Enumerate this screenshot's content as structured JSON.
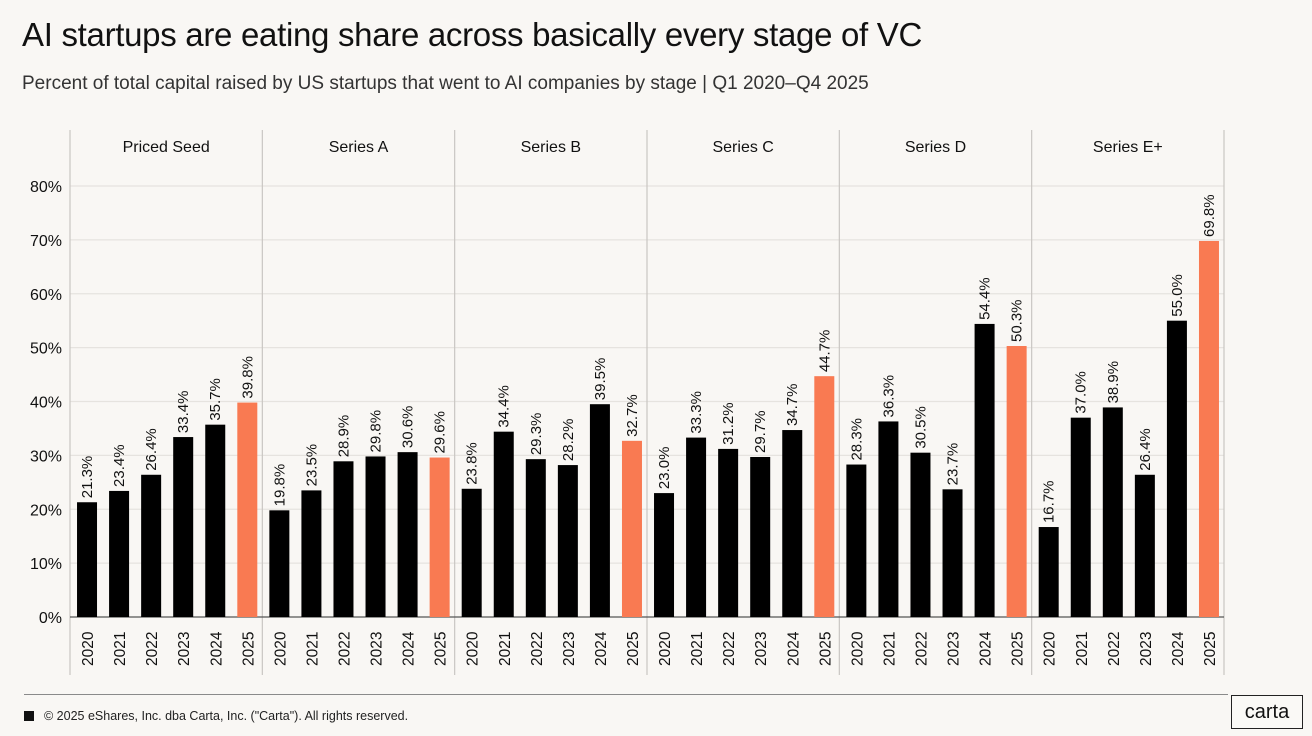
{
  "header": {
    "title": "AI startups are eating share across basically every stage of VC",
    "subtitle": "Percent of total capital raised by US startups that went to AI companies by stage | Q1 2020–Q4 2025"
  },
  "footer": {
    "copyright": "© 2025 eShares, Inc. dba Carta, Inc. (\"Carta\"). All rights reserved.",
    "logo": "carta"
  },
  "colors": {
    "default_bar": "#000000",
    "highlight_bar": "#f97a52",
    "background": "#f9f7f4"
  },
  "chart_data": {
    "type": "bar",
    "title": "AI startups are eating share across basically every stage of VC",
    "subtitle": "Percent of total capital raised by US startups that went to AI companies by stage | Q1 2020–Q4 2025",
    "xlabel": "",
    "ylabel": "",
    "ylim": [
      0,
      80
    ],
    "yticks": [
      0,
      10,
      20,
      30,
      40,
      50,
      60,
      70,
      80
    ],
    "ytick_labels": [
      "0%",
      "10%",
      "20%",
      "30%",
      "40%",
      "50%",
      "60%",
      "70%",
      "80%"
    ],
    "grid": true,
    "legend": "none",
    "categories": [
      "2020",
      "2021",
      "2022",
      "2023",
      "2024",
      "2025"
    ],
    "highlight_category": "2025",
    "panels": [
      {
        "name": "Priced Seed",
        "values": [
          21.3,
          23.4,
          26.4,
          33.4,
          35.7,
          39.8
        ],
        "labels": [
          "21.3%",
          "23.4%",
          "26.4%",
          "33.4%",
          "35.7%",
          "39.8%"
        ]
      },
      {
        "name": "Series A",
        "values": [
          19.8,
          23.5,
          28.9,
          29.8,
          30.6,
          29.6
        ],
        "labels": [
          "19.8%",
          "23.5%",
          "28.9%",
          "29.8%",
          "30.6%",
          "29.6%"
        ]
      },
      {
        "name": "Series B",
        "values": [
          23.8,
          34.4,
          29.3,
          28.2,
          39.5,
          32.7
        ],
        "labels": [
          "23.8%",
          "34.4%",
          "29.3%",
          "28.2%",
          "39.5%",
          "32.7%"
        ]
      },
      {
        "name": "Series C",
        "values": [
          23.0,
          33.3,
          31.2,
          29.7,
          34.7,
          44.7
        ],
        "labels": [
          "23.0%",
          "33.3%",
          "31.2%",
          "29.7%",
          "34.7%",
          "44.7%"
        ]
      },
      {
        "name": "Series D",
        "values": [
          28.3,
          36.3,
          30.5,
          23.7,
          54.4,
          50.3
        ],
        "labels": [
          "28.3%",
          "36.3%",
          "30.5%",
          "23.7%",
          "54.4%",
          "50.3%"
        ]
      },
      {
        "name": "Series E+",
        "values": [
          16.7,
          37.0,
          38.9,
          26.4,
          55.0,
          69.8
        ],
        "labels": [
          "16.7%",
          "37.0%",
          "38.9%",
          "26.4%",
          "55.0%",
          "69.8%"
        ]
      }
    ]
  }
}
